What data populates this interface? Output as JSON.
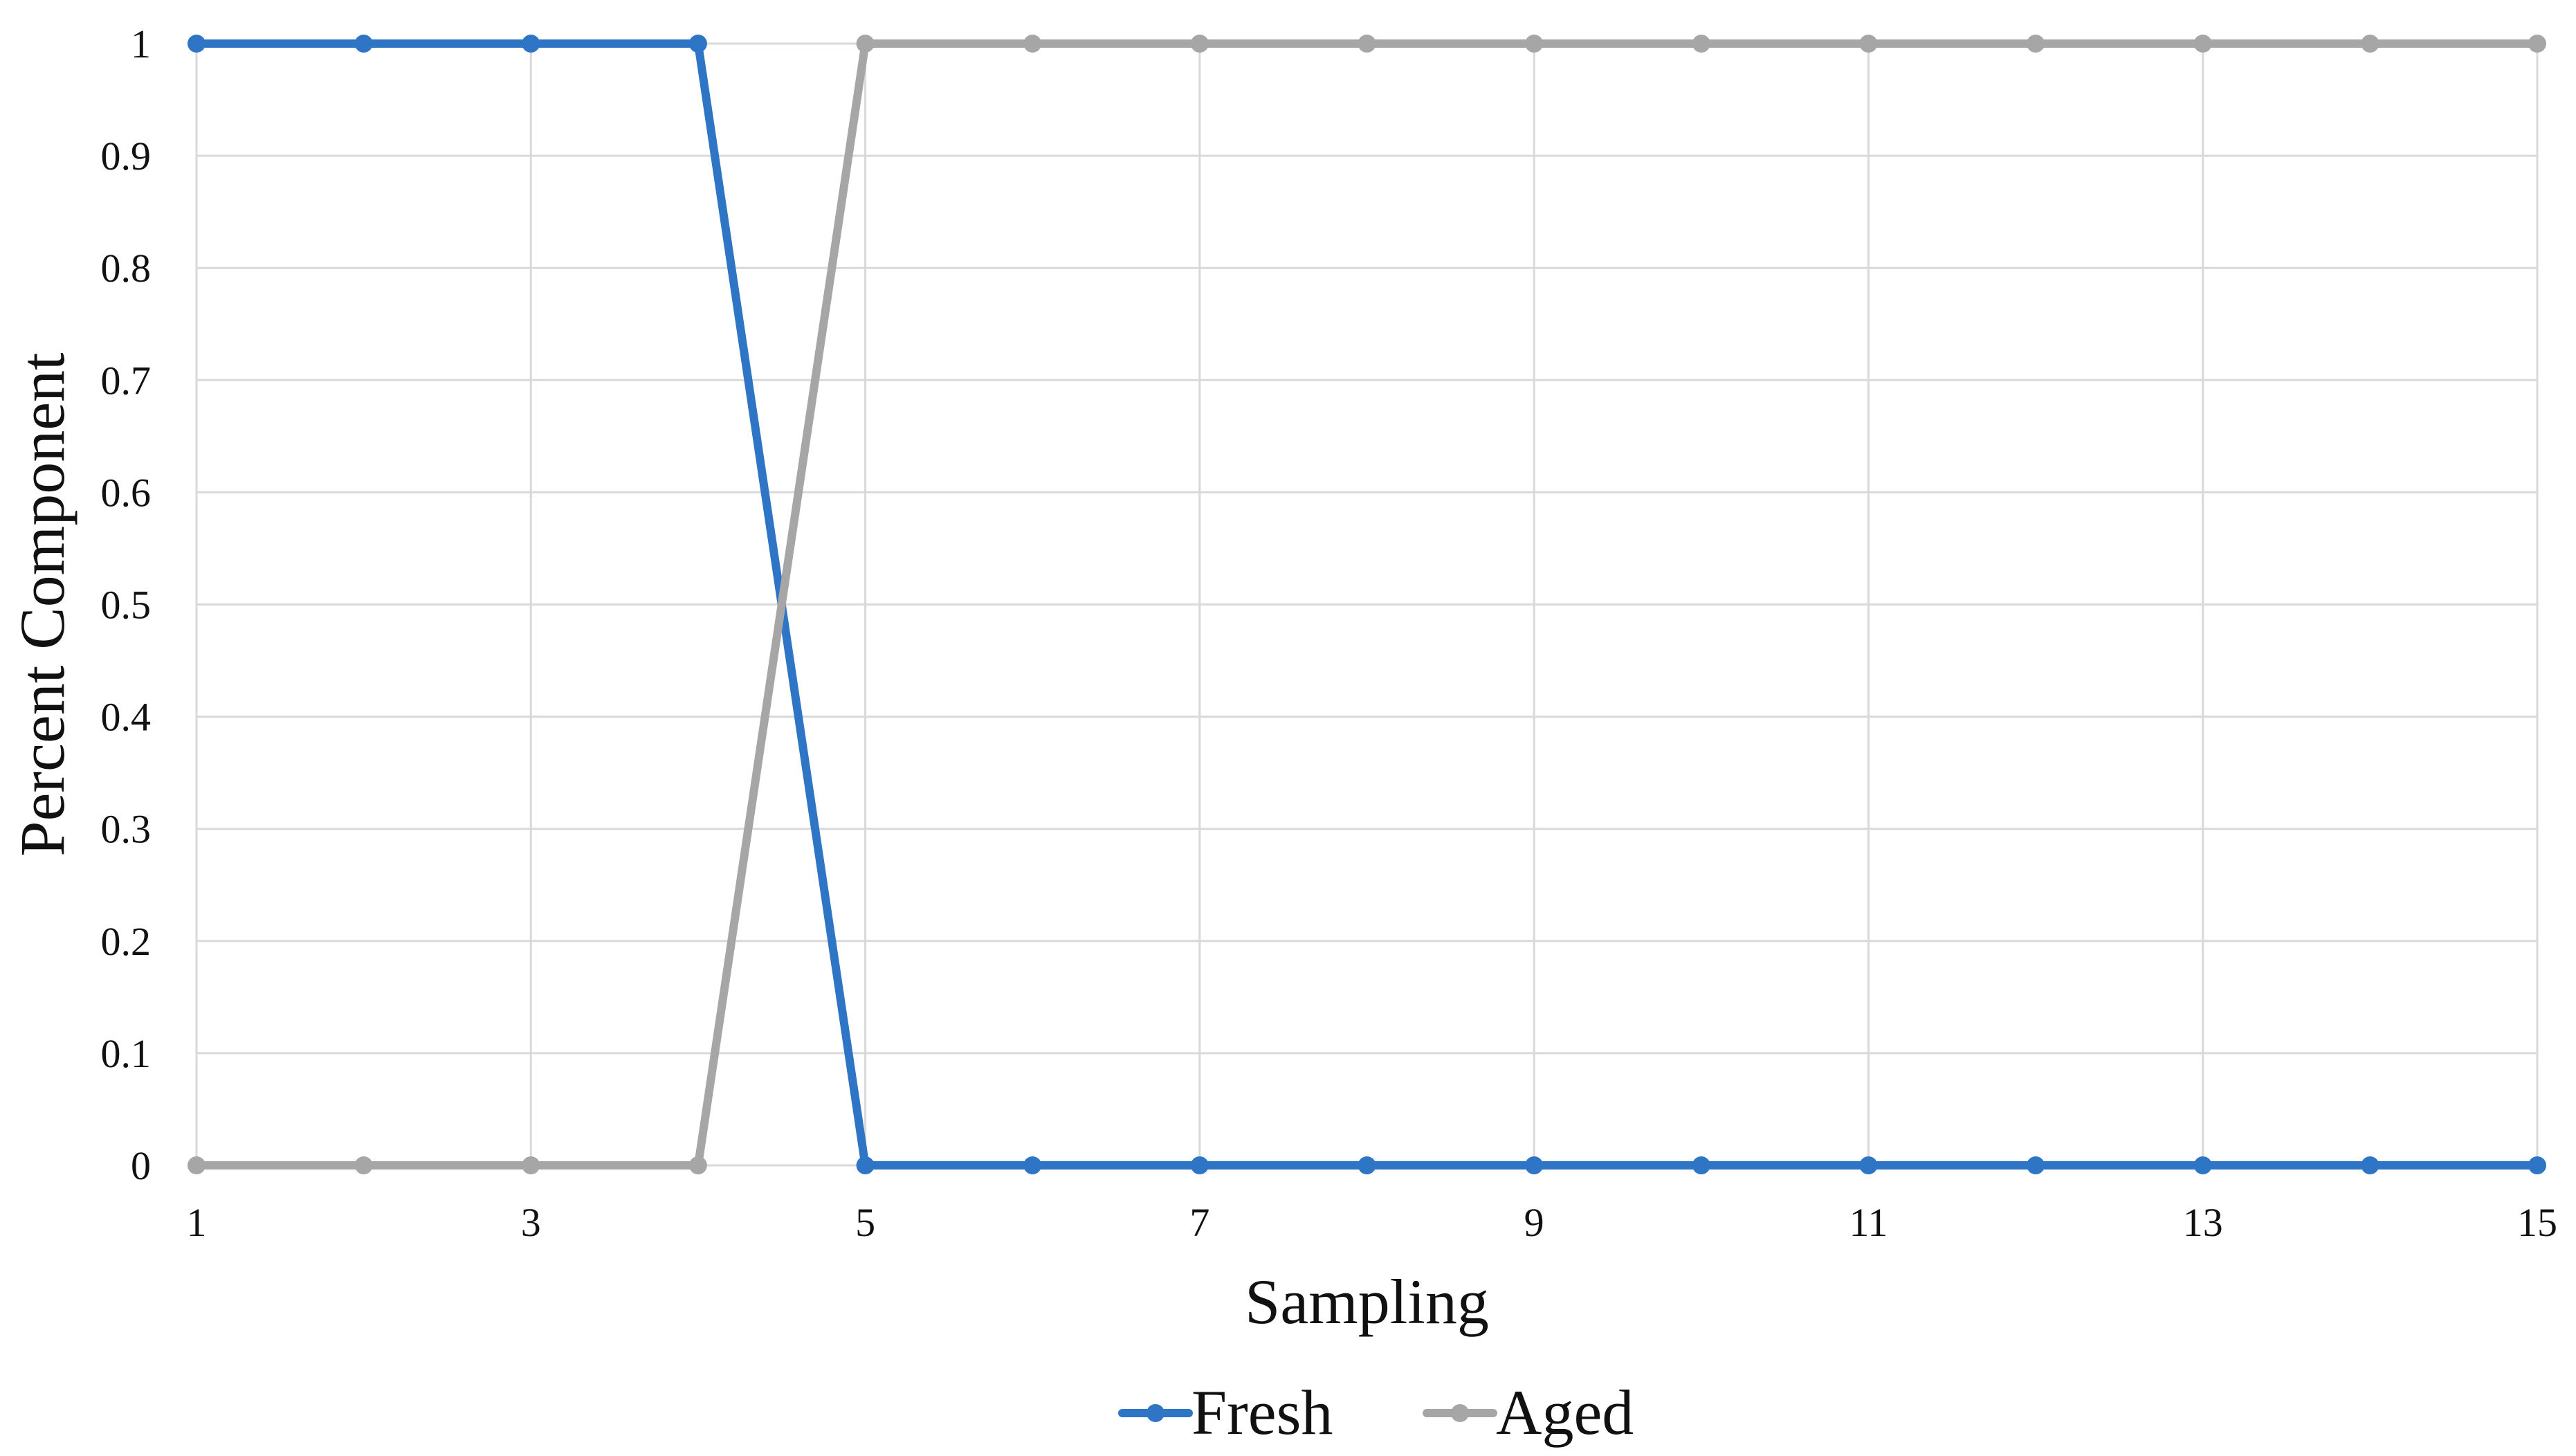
{
  "chart_data": {
    "type": "line",
    "title": "",
    "xlabel": "Sampling",
    "ylabel": "Percent Component",
    "x": [
      1,
      2,
      3,
      4,
      5,
      6,
      7,
      8,
      9,
      10,
      11,
      12,
      13,
      14,
      15
    ],
    "x_tick_labels": [
      "1",
      "3",
      "5",
      "7",
      "9",
      "11",
      "13",
      "15"
    ],
    "x_tick_values": [
      1,
      3,
      5,
      7,
      9,
      11,
      13,
      15
    ],
    "y_tick_labels": [
      "0",
      "0.1",
      "0.2",
      "0.3",
      "0.4",
      "0.5",
      "0.6",
      "0.7",
      "0.8",
      "0.9",
      "1"
    ],
    "y_tick_values": [
      0,
      0.1,
      0.2,
      0.3,
      0.4,
      0.5,
      0.6,
      0.7,
      0.8,
      0.9,
      1
    ],
    "xlim": [
      1,
      15
    ],
    "ylim": [
      0,
      1
    ],
    "grid": true,
    "legend_position": "bottom",
    "series": [
      {
        "name": "Fresh",
        "color": "#2E75C6",
        "values": [
          1,
          1,
          1,
          1,
          0,
          0,
          0,
          0,
          0,
          0,
          0,
          0,
          0,
          0,
          0
        ]
      },
      {
        "name": "Aged",
        "color": "#A6A6A6",
        "values": [
          0,
          0,
          0,
          0,
          1,
          1,
          1,
          1,
          1,
          1,
          1,
          1,
          1,
          1,
          1
        ]
      }
    ],
    "gridline_color": "#D9D9D9"
  }
}
